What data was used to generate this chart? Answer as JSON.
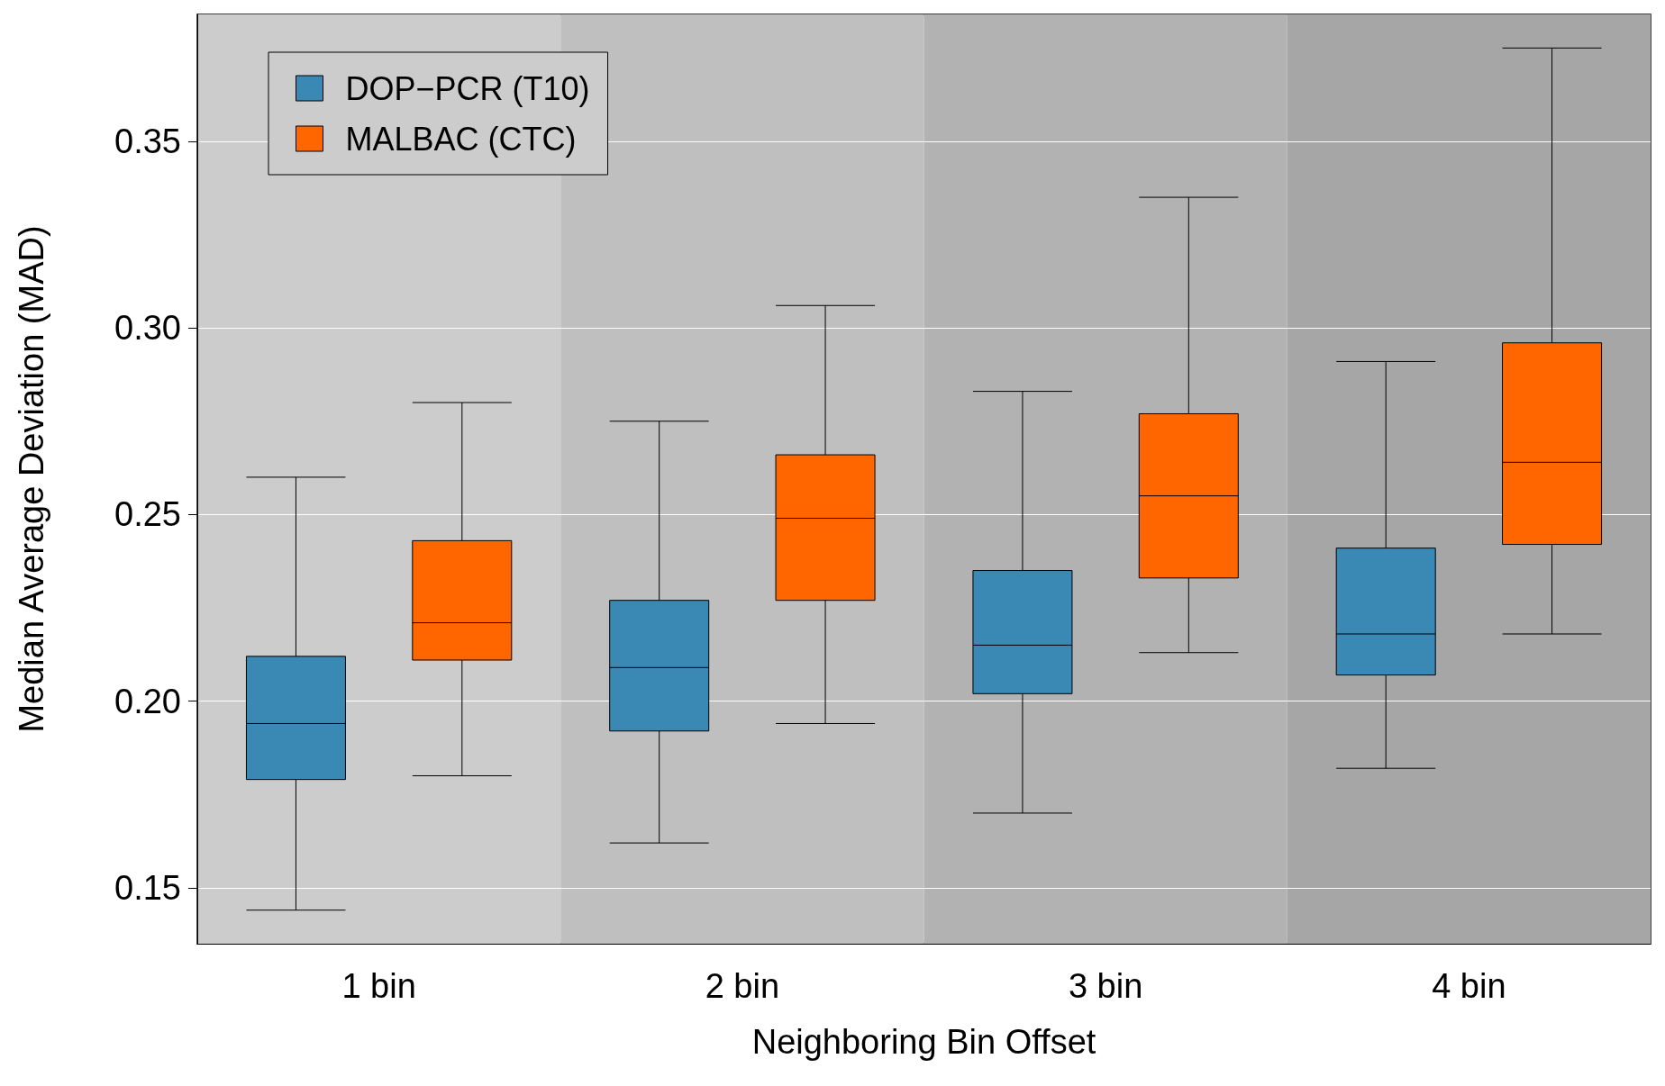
{
  "chart_data": {
    "type": "box",
    "xlabel": "Neighboring Bin Offset",
    "ylabel": "Median Average Deviation (MAD)",
    "categories": [
      "1 bin",
      "2 bin",
      "3 bin",
      "4 bin"
    ],
    "series": [
      {
        "name": "DOP−PCR (T10)",
        "color": "#3a89b4",
        "boxes": [
          {
            "low": 0.144,
            "q1": 0.179,
            "median": 0.194,
            "q3": 0.212,
            "high": 0.26
          },
          {
            "low": 0.162,
            "q1": 0.192,
            "median": 0.209,
            "q3": 0.227,
            "high": 0.275
          },
          {
            "low": 0.17,
            "q1": 0.202,
            "median": 0.215,
            "q3": 0.235,
            "high": 0.283
          },
          {
            "low": 0.182,
            "q1": 0.207,
            "median": 0.218,
            "q3": 0.241,
            "high": 0.291
          }
        ]
      },
      {
        "name": "MALBAC (CTC)",
        "color": "#ff6600",
        "boxes": [
          {
            "low": 0.18,
            "q1": 0.211,
            "median": 0.221,
            "q3": 0.243,
            "high": 0.28
          },
          {
            "low": 0.194,
            "q1": 0.227,
            "median": 0.249,
            "q3": 0.266,
            "high": 0.306
          },
          {
            "low": 0.213,
            "q1": 0.233,
            "median": 0.255,
            "q3": 0.277,
            "high": 0.335
          },
          {
            "low": 0.218,
            "q1": 0.242,
            "median": 0.264,
            "q3": 0.296,
            "high": 0.375
          }
        ]
      }
    ],
    "ylim": [
      0.135,
      0.384
    ],
    "yticks": [
      0.15,
      {
        "value": 0.2,
        "label": "0.20"
      },
      0.25,
      {
        "value": 0.3,
        "label": "0.30"
      },
      0.35
    ],
    "grid": "y",
    "legend": "top left",
    "bands": [
      {
        "axis": "x",
        "from": "1 bin",
        "to": "1 bin",
        "color": "#cccccc"
      },
      {
        "axis": "x",
        "from": "2 bin",
        "to": "2 bin",
        "color": "#bfbfbf"
      },
      {
        "axis": "x",
        "from": "3 bin",
        "to": "3 bin",
        "color": "#b2b2b2"
      },
      {
        "axis": "x",
        "from": "4 bin",
        "to": "4 bin",
        "color": "#a6a6a6"
      }
    ]
  }
}
